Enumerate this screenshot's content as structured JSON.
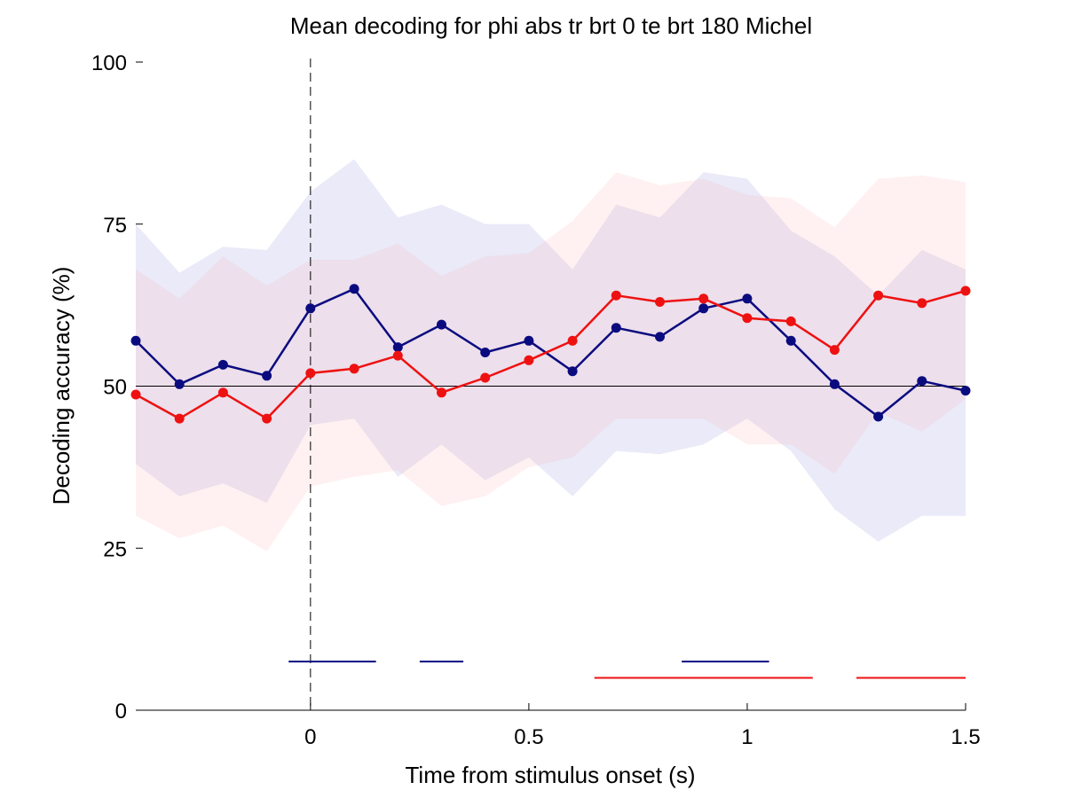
{
  "chart_data": {
    "type": "line",
    "title": "Mean decoding for phi abs tr brt 0 te brt 180  Michel",
    "xlabel": "Time from stimulus onset (s)",
    "ylabel": "Decoding accuracy (%)",
    "xlim": [
      -0.4,
      1.5
    ],
    "ylim": [
      0,
      100
    ],
    "xticks": [
      0,
      0.5,
      1,
      1.5
    ],
    "xtick_labels": [
      "0",
      "0.5",
      "1",
      "1.5"
    ],
    "yticks": [
      0,
      25,
      50,
      75,
      100
    ],
    "ytick_labels": [
      "0",
      "25",
      "50",
      "75",
      "100"
    ],
    "chance_level": 50,
    "onset_marker_x": 0,
    "grid": false,
    "x": [
      -0.4,
      -0.3,
      -0.2,
      -0.1,
      0,
      0.1,
      0.2,
      0.3,
      0.4,
      0.5,
      0.6,
      0.7,
      0.8,
      0.9,
      1.0,
      1.1,
      1.2,
      1.3,
      1.4,
      1.5
    ],
    "series": [
      {
        "color": "#0b0b80",
        "band_color": "#6a6ad0",
        "values": [
          57.0,
          50.3,
          53.3,
          51.6,
          62.0,
          65.0,
          56.0,
          59.5,
          55.2,
          57.0,
          52.3,
          59.0,
          57.6,
          62.0,
          63.5,
          57.0,
          50.3,
          45.3,
          50.8,
          49.3
        ],
        "band_upper": [
          75.0,
          67.5,
          71.5,
          71.0,
          80.0,
          85.0,
          76.0,
          78.0,
          75.0,
          75.0,
          68.0,
          78.0,
          76.0,
          83.0,
          82.0,
          74.0,
          70.0,
          64.0,
          71.0,
          68.0
        ],
        "band_lower": [
          38.0,
          33.0,
          35.0,
          32.0,
          44.0,
          45.0,
          36.0,
          41.0,
          35.5,
          39.0,
          33.0,
          40.0,
          39.5,
          41.0,
          45.0,
          40.0,
          31.0,
          26.0,
          30.0,
          30.0
        ],
        "significance": [
          [
            -0.05,
            0.15
          ],
          [
            0.25,
            0.35
          ],
          [
            0.85,
            1.05
          ]
        ],
        "significance_y": 7.5
      },
      {
        "color": "#ee1111",
        "band_color": "#ff9a9a",
        "values": [
          48.7,
          45.0,
          49.0,
          45.0,
          52.0,
          52.7,
          54.7,
          49.0,
          51.3,
          54.0,
          57.0,
          64.0,
          63.0,
          63.5,
          60.5,
          60.0,
          55.6,
          64.0,
          62.8,
          64.7
        ],
        "band_upper": [
          68.0,
          63.5,
          70.0,
          65.5,
          69.5,
          69.5,
          72.0,
          67.0,
          70.0,
          70.5,
          75.5,
          83.0,
          81.0,
          82.0,
          79.5,
          79.0,
          74.5,
          82.0,
          82.5,
          81.5
        ],
        "band_lower": [
          30.0,
          26.5,
          28.5,
          24.5,
          34.5,
          36.0,
          37.0,
          31.5,
          33.0,
          37.5,
          39.0,
          45.0,
          45.0,
          45.0,
          41.0,
          41.0,
          36.5,
          46.0,
          43.0,
          48.0
        ],
        "significance": [
          [
            0.65,
            1.15
          ],
          [
            1.25,
            1.5
          ]
        ],
        "significance_y": 5.0
      }
    ]
  }
}
